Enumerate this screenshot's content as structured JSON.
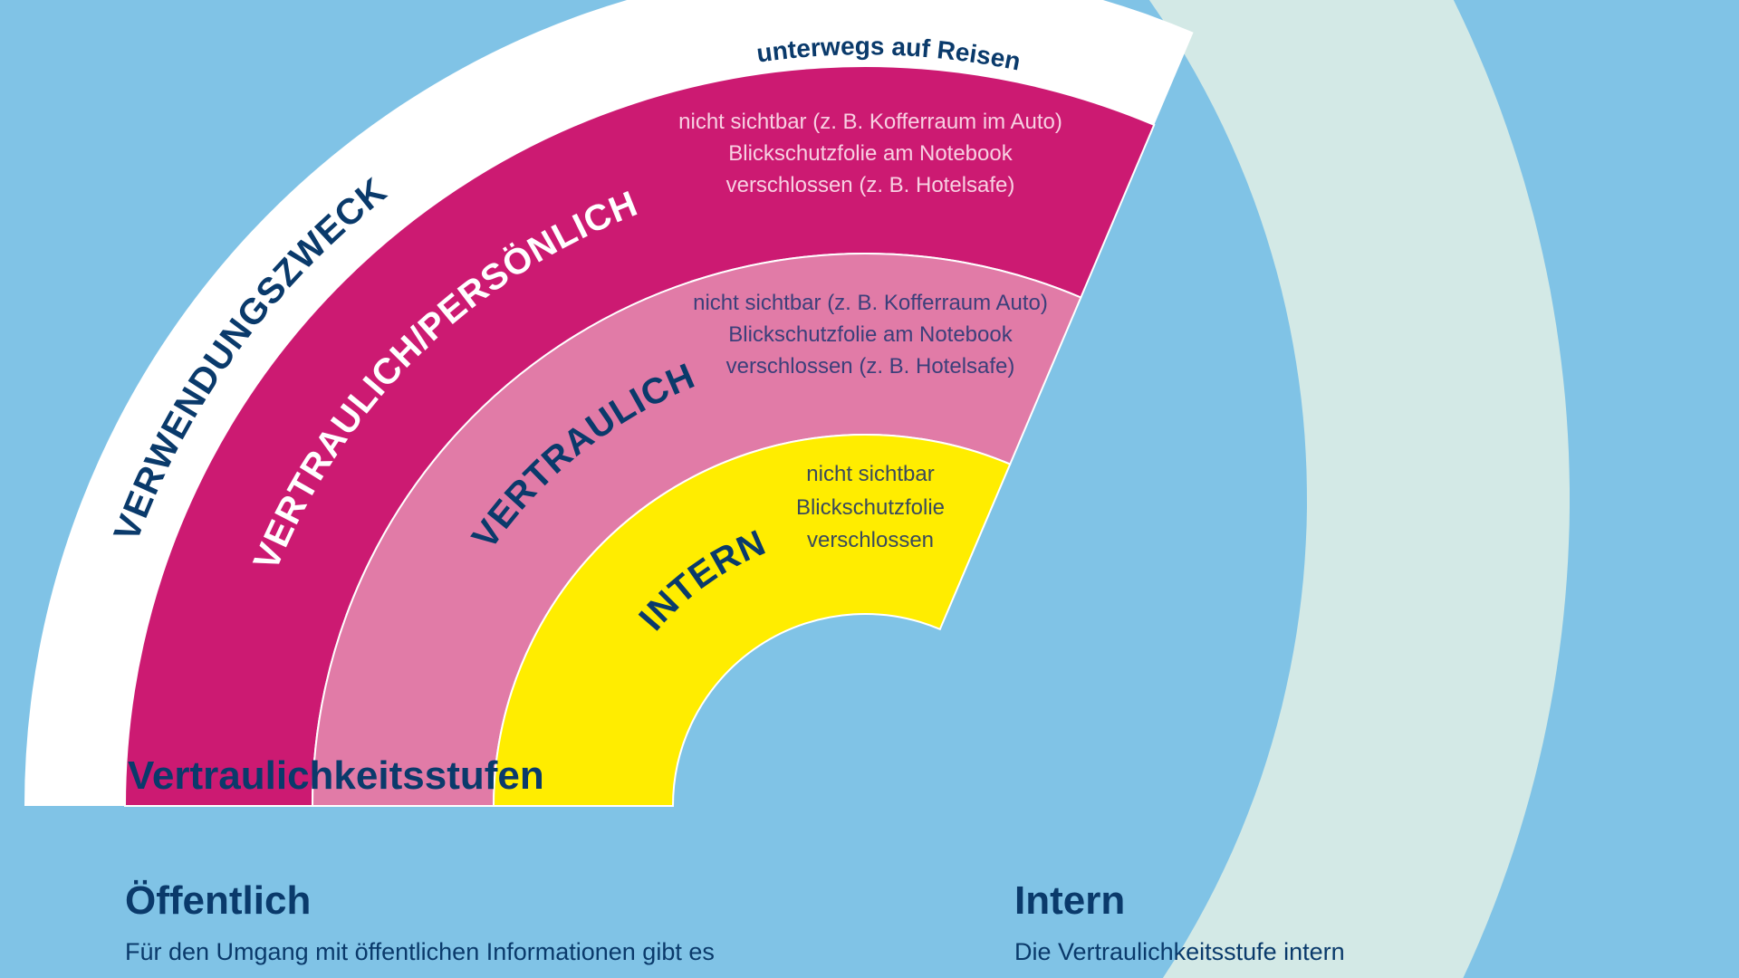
{
  "colors": {
    "background": "#80c3e6",
    "outer_ring": "#d3e9e6",
    "verwendungszweck": "#ffffff",
    "vertraulich_persoenlich": "#cc1a72",
    "vertraulich": "#e17ba7",
    "intern": "#ffed00",
    "navy": "#0a3a6b"
  },
  "diagram": {
    "top_label": "unterwegs auf Reisen",
    "bands": [
      {
        "label": "VERWENDUNGSZWECK"
      },
      {
        "label": "VERTRAULICH/PERSÖNLICH",
        "lines": [
          "nicht sichtbar (z. B. Kofferraum im Auto)",
          "Blickschutzfolie am Notebook",
          "verschlossen (z. B. Hotelsafe)"
        ]
      },
      {
        "label": "VERTRAULICH",
        "lines": [
          "nicht sichtbar (z. B. Kofferraum Auto)",
          "Blickschutzfolie am Notebook",
          "verschlossen (z. B. Hotelsafe)"
        ]
      },
      {
        "label": "INTERN",
        "lines": [
          "nicht sichtbar",
          "Blickschutzfolie",
          "verschlossen"
        ]
      }
    ],
    "title": "Vertraulichkeitsstufen"
  },
  "sections": [
    {
      "heading": "Öffentlich",
      "text": "Für den Umgang mit öffentlichen Informationen gibt es"
    },
    {
      "heading": "Intern",
      "text": "Die Vertraulichkeitsstufe intern"
    }
  ]
}
